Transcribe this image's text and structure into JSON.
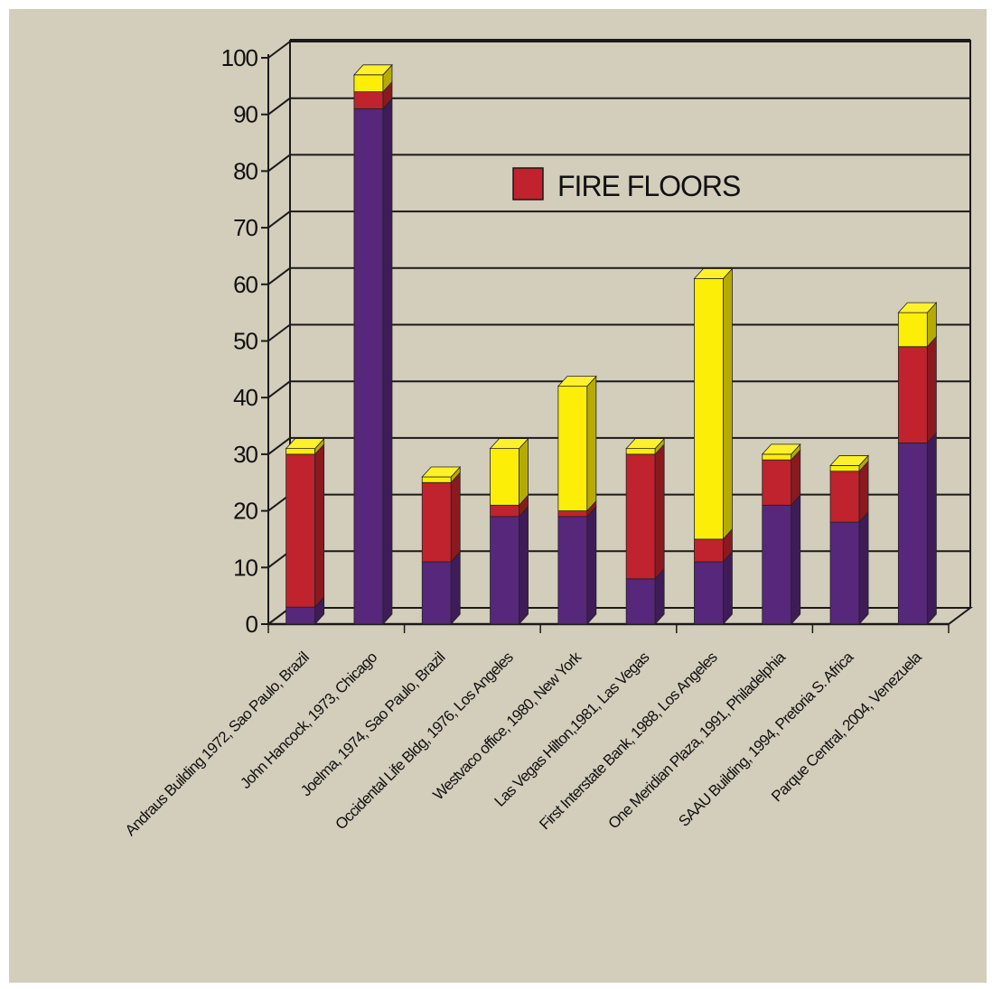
{
  "chart_data": {
    "type": "bar",
    "stacked": true,
    "three_d": true,
    "categories": [
      "Andraus Building 1972, Sao Paulo, Brazil",
      "John Hancock, 1973, Chicago",
      "Joelma, 1974, Sao Paulo, Brazil",
      "Occidental Life Bldg, 1976, Los Angeles",
      "Westvaco office, 1980, New York",
      "Las Vegas Hilton,1981, Las Vegas",
      "First Interstate Bank, 1988, Los Angeles",
      "One Meridian Plaza, 1991, Philadelphia",
      "SAAU Building, 1994, Pretoria S. Africa",
      "Parque Central, 2004, Venezuela"
    ],
    "series": [
      {
        "values": [
          3,
          91,
          11,
          19,
          19,
          8,
          11,
          21,
          18,
          32
        ]
      },
      {
        "name": "FIRE FLOORS",
        "values": [
          27,
          3,
          14,
          2,
          1,
          22,
          4,
          8,
          9,
          17
        ]
      },
      {
        "values": [
          1,
          3,
          1,
          10,
          22,
          1,
          46,
          1,
          1,
          6
        ]
      }
    ],
    "series_colors": [
      "#56277a",
      "#c0232d",
      "#fdee07"
    ],
    "yticks": [
      0,
      10,
      20,
      30,
      40,
      50,
      60,
      70,
      80,
      90,
      100
    ],
    "ylim": [
      0,
      100
    ],
    "grid": true,
    "legend": {
      "position": "top-center",
      "label": "FIRE FLOORS",
      "color": "#c0232d"
    },
    "title": "",
    "xlabel": "",
    "ylabel": ""
  },
  "colors": {
    "background": "#d3cdbb",
    "grid": "#1a1a1a"
  }
}
